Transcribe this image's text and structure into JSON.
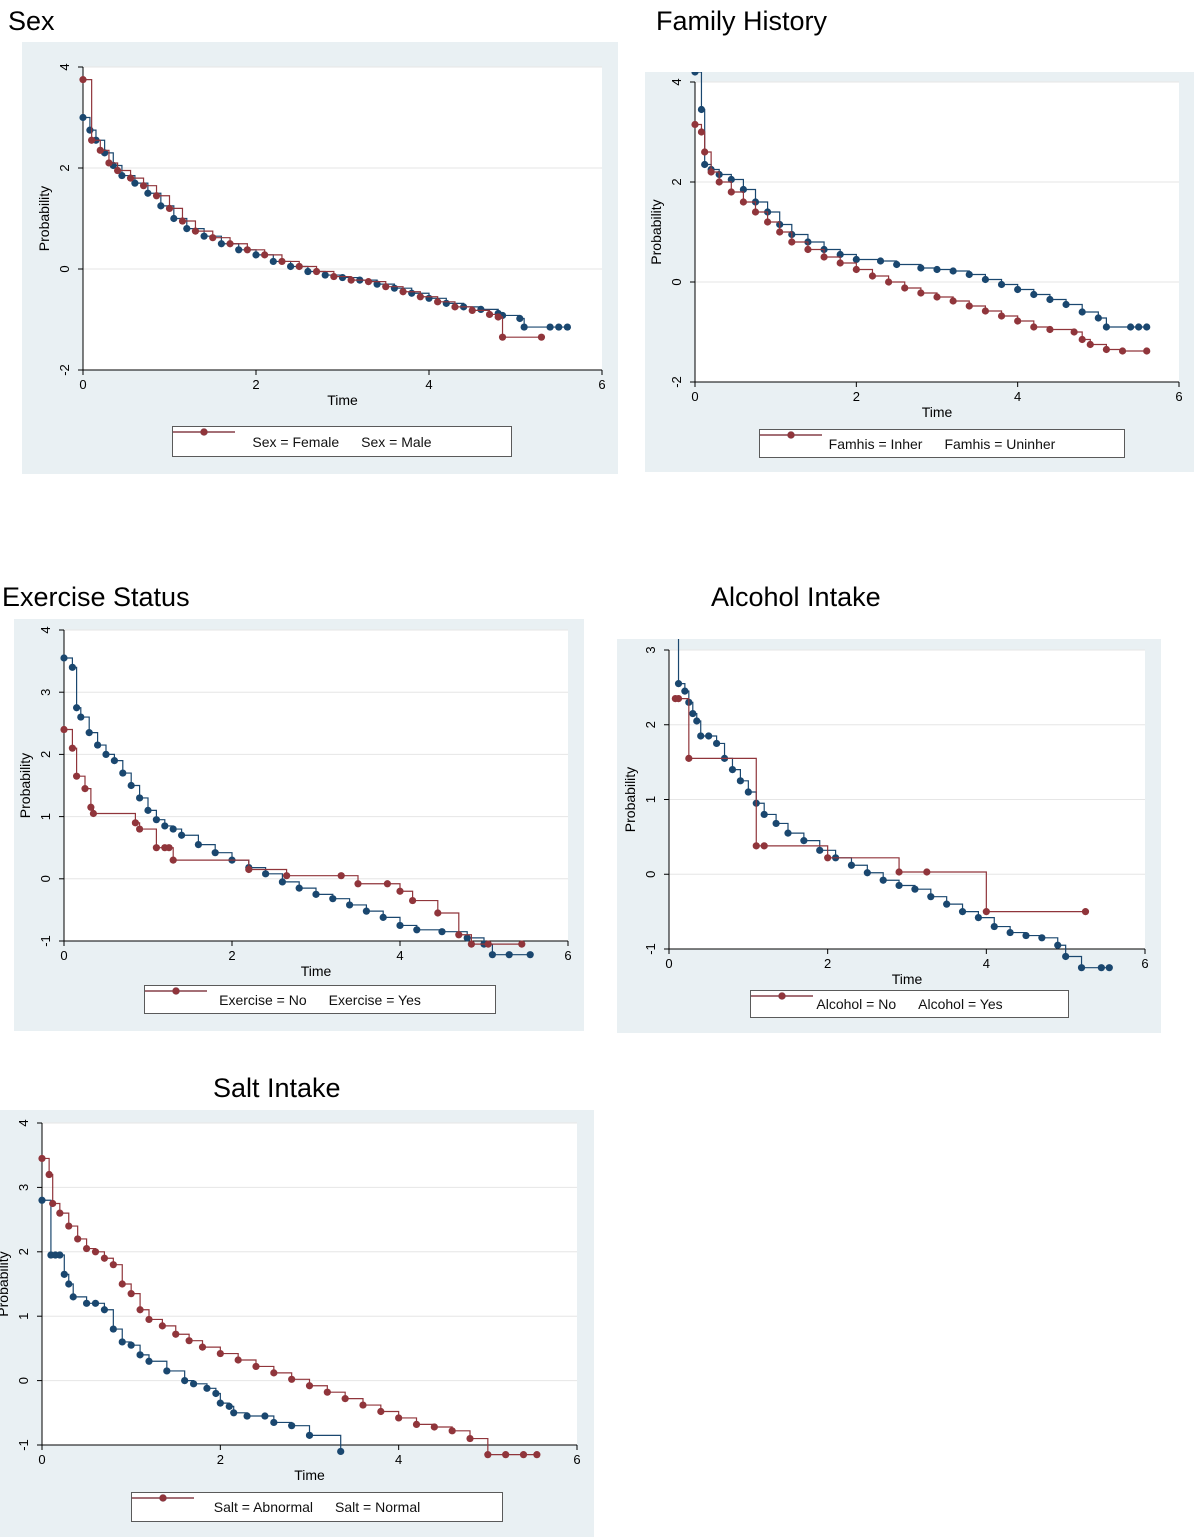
{
  "titles": [
    "Sex",
    "Family History",
    "Exercise  Status",
    "Alcohol Intake",
    "Salt Intake"
  ],
  "colors": {
    "blue": "#1a476f",
    "red": "#90353b",
    "grid": "#e6e6e6",
    "axis": "#000000",
    "bg": "#e9f0f3"
  },
  "chart_data": [
    {
      "type": "line",
      "xlabel": "Time",
      "ylabel": "Probability",
      "xlim": [
        0,
        6
      ],
      "ylim": [
        -2,
        4
      ],
      "xticks": [
        0,
        2,
        4,
        6
      ],
      "yticks": [
        -2,
        0,
        2,
        4
      ],
      "grid": true,
      "legend_position": "bottom",
      "series": [
        {
          "name": "Sex = Female",
          "color": "#1a476f",
          "x": [
            0,
            0.08,
            0.15,
            0.25,
            0.35,
            0.45,
            0.6,
            0.75,
            0.9,
            1.05,
            1.2,
            1.4,
            1.6,
            1.8,
            2.0,
            2.2,
            2.4,
            2.6,
            2.8,
            3.0,
            3.2,
            3.4,
            3.6,
            3.8,
            4.0,
            4.2,
            4.4,
            4.6,
            4.8,
            4.85,
            5.05,
            5.1,
            5.4,
            5.5,
            5.6
          ],
          "y": [
            3.0,
            2.75,
            2.55,
            2.3,
            2.05,
            1.85,
            1.7,
            1.5,
            1.25,
            1.0,
            0.8,
            0.65,
            0.5,
            0.38,
            0.28,
            0.15,
            0.05,
            -0.05,
            -0.12,
            -0.17,
            -0.22,
            -0.3,
            -0.38,
            -0.48,
            -0.58,
            -0.68,
            -0.75,
            -0.8,
            -0.88,
            -0.92,
            -0.98,
            -1.15,
            -1.15,
            -1.15,
            -1.15
          ]
        },
        {
          "name": "Sex = Male",
          "color": "#90353b",
          "x": [
            0,
            0.1,
            0.2,
            0.3,
            0.4,
            0.55,
            0.7,
            0.85,
            1.0,
            1.15,
            1.3,
            1.5,
            1.7,
            1.9,
            2.1,
            2.3,
            2.5,
            2.7,
            2.9,
            3.1,
            3.3,
            3.5,
            3.7,
            3.9,
            4.1,
            4.3,
            4.5,
            4.7,
            4.8,
            4.85,
            5.3
          ],
          "y": [
            3.75,
            2.55,
            2.35,
            2.1,
            1.95,
            1.8,
            1.65,
            1.45,
            1.2,
            0.95,
            0.75,
            0.62,
            0.5,
            0.38,
            0.28,
            0.15,
            0.05,
            -0.05,
            -0.15,
            -0.22,
            -0.25,
            -0.35,
            -0.45,
            -0.55,
            -0.65,
            -0.75,
            -0.82,
            -0.9,
            -0.95,
            -1.35,
            -1.35
          ]
        }
      ]
    },
    {
      "type": "line",
      "xlabel": "Time",
      "ylabel": "Probability",
      "xlim": [
        0,
        6
      ],
      "ylim": [
        -2,
        4
      ],
      "xticks": [
        0,
        2,
        4,
        6
      ],
      "yticks": [
        -2,
        0,
        2,
        4
      ],
      "grid": true,
      "legend_position": "bottom",
      "series": [
        {
          "name": "Famhis = Inher",
          "color": "#1a476f",
          "x": [
            0,
            0.08,
            0.12,
            0.2,
            0.3,
            0.45,
            0.6,
            0.75,
            0.9,
            1.05,
            1.2,
            1.4,
            1.6,
            1.8,
            2.0,
            2.3,
            2.5,
            2.8,
            3.0,
            3.2,
            3.4,
            3.6,
            3.8,
            4.0,
            4.2,
            4.4,
            4.6,
            4.8,
            5.0,
            5.1,
            5.4,
            5.5,
            5.6
          ],
          "y": [
            4.2,
            3.45,
            2.35,
            2.25,
            2.15,
            2.05,
            1.85,
            1.6,
            1.4,
            1.15,
            0.95,
            0.8,
            0.65,
            0.55,
            0.45,
            0.42,
            0.35,
            0.28,
            0.25,
            0.22,
            0.15,
            0.05,
            -0.05,
            -0.15,
            -0.25,
            -0.35,
            -0.45,
            -0.6,
            -0.72,
            -0.9,
            -0.9,
            -0.9,
            -0.9
          ]
        },
        {
          "name": "Famhis = Uninher",
          "color": "#90353b",
          "x": [
            0,
            0.08,
            0.12,
            0.2,
            0.3,
            0.45,
            0.6,
            0.75,
            0.9,
            1.05,
            1.2,
            1.4,
            1.6,
            1.8,
            2.0,
            2.2,
            2.4,
            2.6,
            2.8,
            3.0,
            3.2,
            3.4,
            3.6,
            3.8,
            4.0,
            4.2,
            4.4,
            4.7,
            4.8,
            4.9,
            5.1,
            5.3,
            5.6
          ],
          "y": [
            3.15,
            3.0,
            2.6,
            2.2,
            2.0,
            1.8,
            1.6,
            1.4,
            1.2,
            1.0,
            0.8,
            0.65,
            0.5,
            0.38,
            0.25,
            0.12,
            0.0,
            -0.12,
            -0.22,
            -0.3,
            -0.38,
            -0.48,
            -0.58,
            -0.68,
            -0.78,
            -0.9,
            -0.95,
            -1.0,
            -1.15,
            -1.25,
            -1.35,
            -1.38,
            -1.38
          ]
        }
      ]
    },
    {
      "type": "line",
      "xlabel": "Time",
      "ylabel": "Probability",
      "xlim": [
        0,
        6
      ],
      "ylim": [
        -1,
        4
      ],
      "xticks": [
        0,
        2,
        4,
        6
      ],
      "yticks": [
        -1,
        0,
        1,
        2,
        3,
        4
      ],
      "grid": true,
      "legend_position": "bottom",
      "series": [
        {
          "name": "Exercise = No",
          "color": "#1a476f",
          "x": [
            0,
            0.1,
            0.15,
            0.2,
            0.3,
            0.4,
            0.5,
            0.6,
            0.7,
            0.8,
            0.9,
            1.0,
            1.1,
            1.2,
            1.3,
            1.4,
            1.6,
            1.8,
            2.0,
            2.2,
            2.4,
            2.6,
            2.8,
            3.0,
            3.2,
            3.4,
            3.6,
            3.8,
            4.0,
            4.2,
            4.5,
            4.8,
            5.0,
            5.1,
            5.3,
            5.55
          ],
          "y": [
            3.55,
            3.4,
            2.75,
            2.6,
            2.35,
            2.15,
            2.0,
            1.9,
            1.7,
            1.5,
            1.3,
            1.1,
            0.95,
            0.85,
            0.8,
            0.7,
            0.55,
            0.42,
            0.3,
            0.18,
            0.08,
            -0.05,
            -0.15,
            -0.25,
            -0.32,
            -0.42,
            -0.52,
            -0.62,
            -0.75,
            -0.82,
            -0.85,
            -0.95,
            -1.05,
            -1.22,
            -1.22,
            -1.22
          ]
        },
        {
          "name": "Exercise = Yes",
          "color": "#90353b",
          "x": [
            0,
            0.1,
            0.15,
            0.25,
            0.32,
            0.35,
            0.85,
            0.9,
            1.1,
            1.2,
            1.25,
            1.3,
            2.2,
            2.65,
            3.3,
            3.5,
            3.85,
            4.0,
            4.15,
            4.45,
            4.7,
            4.85,
            5.05,
            5.45
          ],
          "y": [
            2.4,
            2.1,
            1.65,
            1.45,
            1.15,
            1.05,
            0.9,
            0.8,
            0.5,
            0.5,
            0.5,
            0.3,
            0.15,
            0.05,
            0.05,
            -0.08,
            -0.08,
            -0.2,
            -0.35,
            -0.55,
            -0.9,
            -1.05,
            -1.05,
            -1.05
          ]
        }
      ]
    },
    {
      "type": "line",
      "xlabel": "Time",
      "ylabel": "Probability",
      "xlim": [
        0,
        6
      ],
      "ylim": [
        -1,
        3
      ],
      "xticks": [
        0,
        2,
        4,
        6
      ],
      "yticks": [
        -1,
        0,
        1,
        2,
        3
      ],
      "grid": true,
      "legend_position": "bottom",
      "series": [
        {
          "name": "Alcohol = No",
          "color": "#1a476f",
          "x": [
            0,
            0.08,
            0.12,
            0.2,
            0.25,
            0.3,
            0.35,
            0.4,
            0.5,
            0.6,
            0.7,
            0.8,
            0.9,
            1.0,
            1.1,
            1.2,
            1.35,
            1.5,
            1.7,
            1.9,
            2.1,
            2.3,
            2.5,
            2.7,
            2.9,
            3.1,
            3.3,
            3.5,
            3.7,
            3.9,
            4.1,
            4.3,
            4.5,
            4.7,
            4.9,
            5.0,
            5.2,
            5.45,
            5.55
          ],
          "y": [
            3.3,
            3.2,
            2.55,
            2.45,
            2.3,
            2.15,
            2.05,
            1.85,
            1.85,
            1.75,
            1.55,
            1.4,
            1.25,
            1.1,
            0.95,
            0.8,
            0.68,
            0.55,
            0.45,
            0.32,
            0.22,
            0.12,
            0.02,
            -0.08,
            -0.15,
            -0.2,
            -0.3,
            -0.4,
            -0.5,
            -0.58,
            -0.7,
            -0.78,
            -0.82,
            -0.85,
            -0.95,
            -1.1,
            -1.25,
            -1.25,
            -1.25
          ]
        },
        {
          "name": "Alcohol = Yes",
          "color": "#90353b",
          "x": [
            0.08,
            0.12,
            0.25,
            1.1,
            1.2,
            2.0,
            2.9,
            3.25,
            4.0,
            5.25
          ],
          "y": [
            2.35,
            2.35,
            1.55,
            0.38,
            0.38,
            0.22,
            0.03,
            0.03,
            -0.5,
            -0.5
          ]
        }
      ]
    },
    {
      "type": "line",
      "xlabel": "Time",
      "ylabel": "Probability",
      "xlim": [
        0,
        6
      ],
      "ylim": [
        -1,
        4
      ],
      "xticks": [
        0,
        2,
        4,
        6
      ],
      "yticks": [
        -1,
        0,
        1,
        2,
        3,
        4
      ],
      "grid": true,
      "legend_position": "bottom",
      "series": [
        {
          "name": "Salt = Abnormal",
          "color": "#1a476f",
          "x": [
            0,
            0.1,
            0.15,
            0.2,
            0.25,
            0.3,
            0.35,
            0.5,
            0.6,
            0.7,
            0.8,
            0.9,
            1.0,
            1.1,
            1.2,
            1.4,
            1.6,
            1.7,
            1.85,
            1.95,
            2.0,
            2.1,
            2.15,
            2.3,
            2.5,
            2.6,
            2.8,
            3.0,
            3.35
          ],
          "y": [
            2.8,
            1.95,
            1.95,
            1.95,
            1.65,
            1.5,
            1.3,
            1.2,
            1.2,
            1.1,
            0.8,
            0.6,
            0.55,
            0.4,
            0.3,
            0.15,
            0.0,
            -0.05,
            -0.12,
            -0.2,
            -0.35,
            -0.4,
            -0.5,
            -0.55,
            -0.55,
            -0.65,
            -0.7,
            -0.85,
            -1.1
          ]
        },
        {
          "name": "Salt = Normal",
          "color": "#90353b",
          "x": [
            0,
            0.08,
            0.12,
            0.2,
            0.3,
            0.4,
            0.5,
            0.6,
            0.7,
            0.8,
            0.9,
            1.0,
            1.1,
            1.2,
            1.35,
            1.5,
            1.65,
            1.8,
            2.0,
            2.2,
            2.4,
            2.6,
            2.8,
            3.0,
            3.2,
            3.4,
            3.6,
            3.8,
            4.0,
            4.2,
            4.4,
            4.6,
            4.8,
            5.0,
            5.2,
            5.4,
            5.55
          ],
          "y": [
            3.45,
            3.2,
            2.75,
            2.6,
            2.4,
            2.2,
            2.05,
            2.0,
            1.9,
            1.8,
            1.5,
            1.35,
            1.1,
            0.95,
            0.85,
            0.72,
            0.62,
            0.52,
            0.42,
            0.32,
            0.22,
            0.12,
            0.02,
            -0.08,
            -0.18,
            -0.28,
            -0.38,
            -0.48,
            -0.58,
            -0.68,
            -0.72,
            -0.78,
            -0.9,
            -1.15,
            -1.15,
            -1.15,
            -1.15
          ]
        }
      ]
    }
  ]
}
